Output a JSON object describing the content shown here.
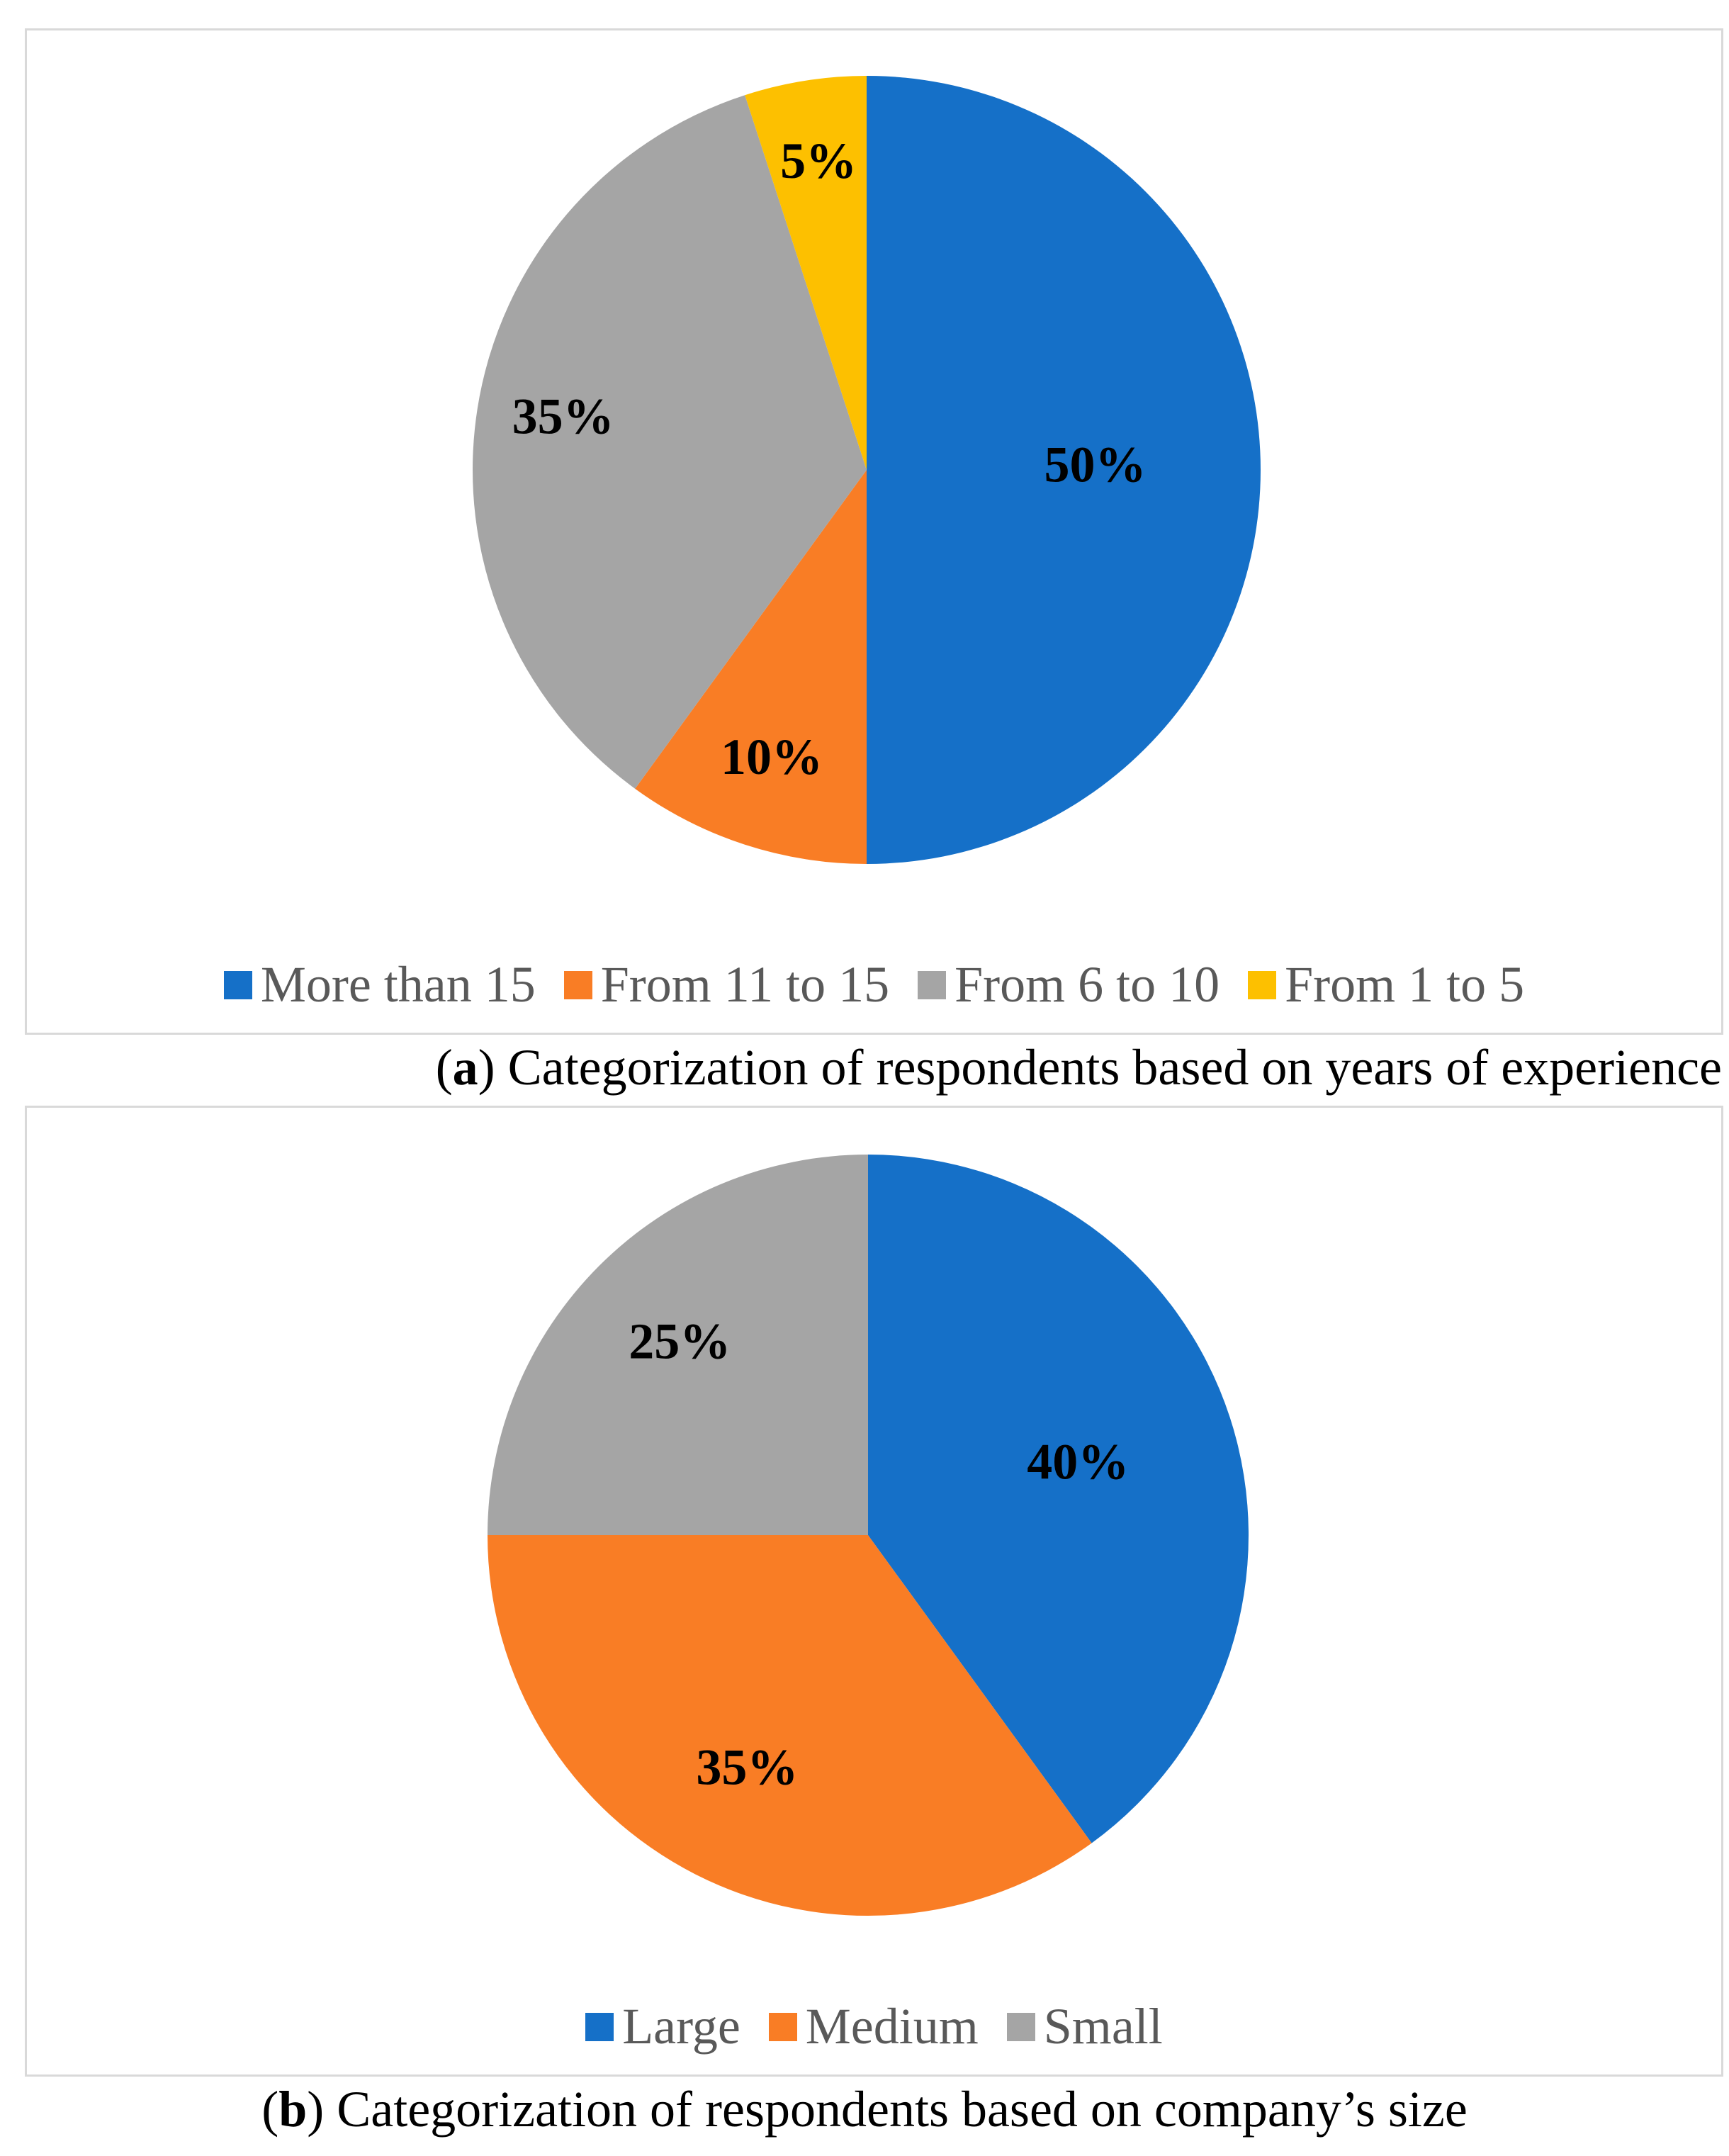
{
  "chart_data": [
    {
      "type": "pie",
      "id": "a",
      "categories": [
        "More than 15",
        "From 11 to 15",
        "From 6 to 10",
        "From 1 to 5"
      ],
      "values": [
        50,
        10,
        35,
        5
      ],
      "data_labels": [
        "50%",
        "10%",
        "35%",
        "5%"
      ],
      "colors": [
        "#1570c8",
        "#f97d25",
        "#a5a5a5",
        "#fdc000"
      ],
      "legend_position": "bottom",
      "caption_letter": "a",
      "caption_open": "(",
      "caption_text": ") Categorization of respondents based on years of experience"
    },
    {
      "type": "pie",
      "id": "b",
      "categories": [
        "Large",
        "Medium",
        "Small"
      ],
      "values": [
        40,
        35,
        25
      ],
      "data_labels": [
        "40%",
        "35%",
        "25%"
      ],
      "colors": [
        "#1570c8",
        "#f97d25",
        "#a5a5a5"
      ],
      "legend_position": "bottom",
      "caption_letter": "b",
      "caption_open": "(",
      "caption_text": ") Categorization of respondents based on company’s size"
    }
  ]
}
